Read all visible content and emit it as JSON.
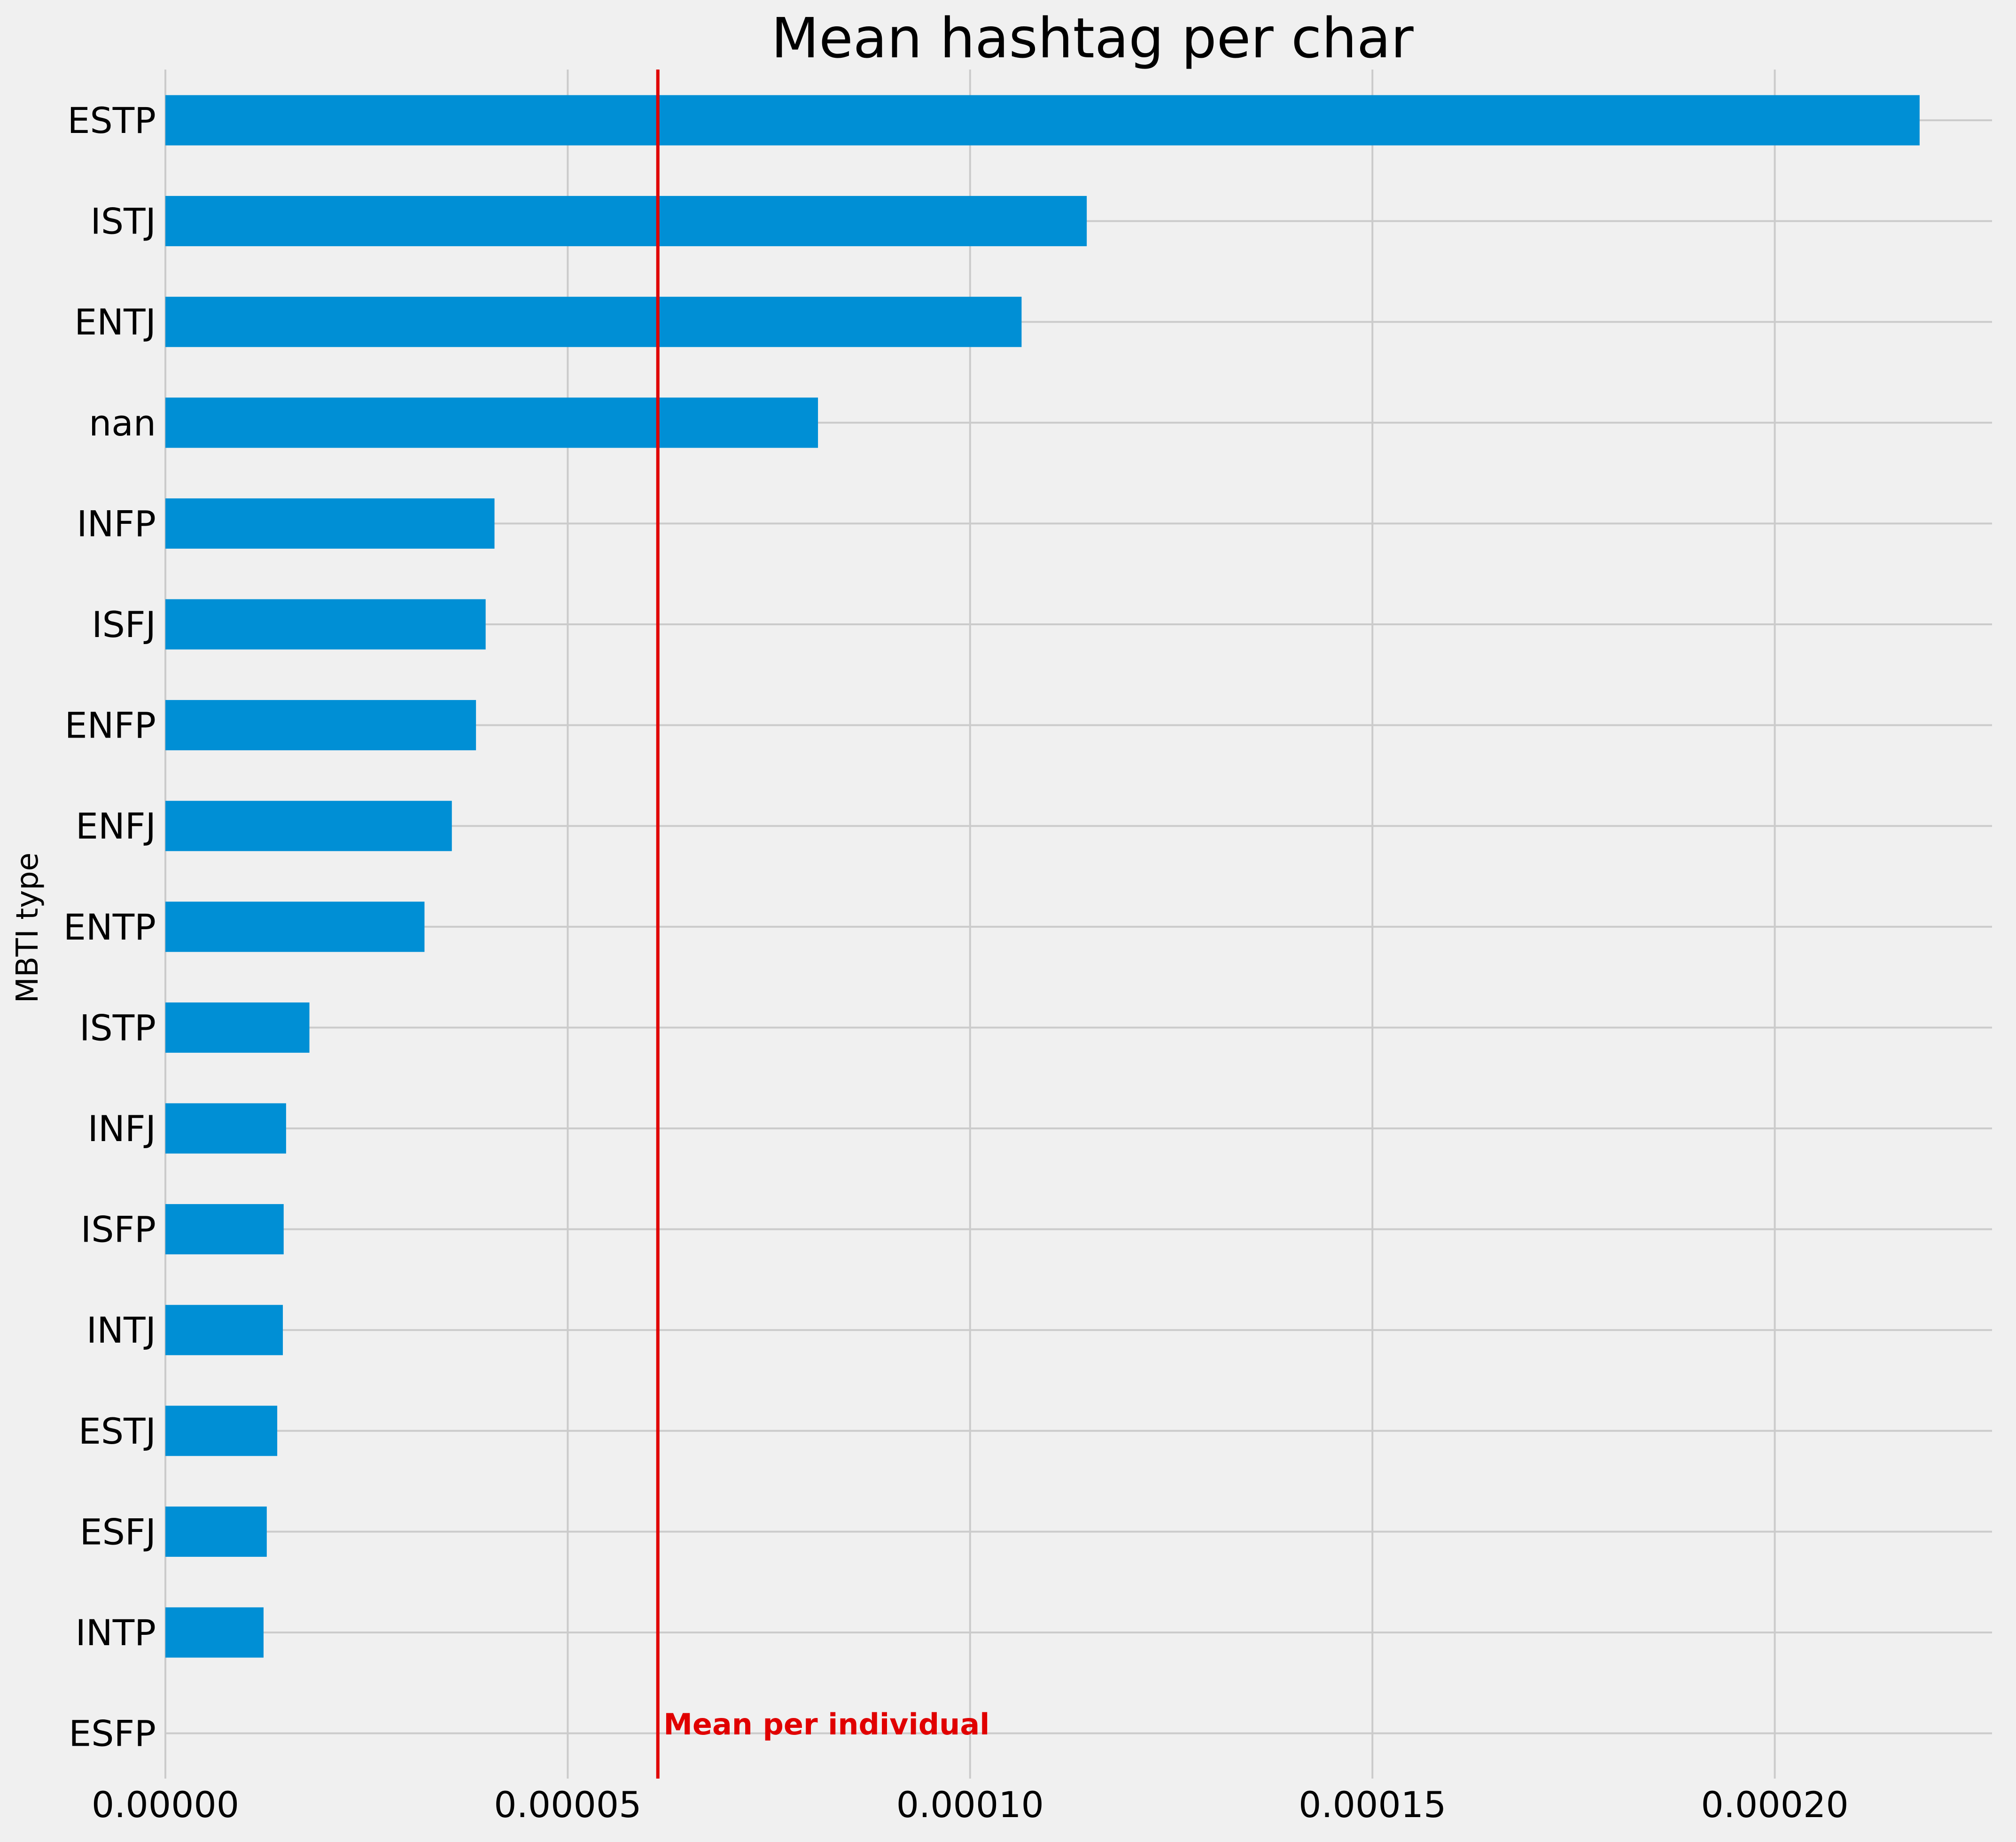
{
  "chart_data": {
    "type": "bar",
    "orientation": "horizontal",
    "title": "Mean hashtag per char",
    "ylabel": "MBTI type",
    "xlabel": "",
    "categories": [
      "ESTP",
      "ISTJ",
      "ENTJ",
      "nan",
      "INFP",
      "ISFJ",
      "ENFP",
      "ENFJ",
      "ENTP",
      "ISTP",
      "INFJ",
      "ISFP",
      "INTJ",
      "ESTJ",
      "ESFJ",
      "INTP",
      "ESFP"
    ],
    "values": [
      0.000218,
      0.0001145,
      0.0001064,
      8.11e-05,
      4.09e-05,
      3.98e-05,
      3.86e-05,
      3.56e-05,
      3.22e-05,
      1.79e-05,
      1.5e-05,
      1.47e-05,
      1.46e-05,
      1.39e-05,
      1.26e-05,
      1.22e-05,
      0.0
    ],
    "xlim": [
      0,
      0.000227
    ],
    "xticks": [
      0,
      5e-05,
      0.0001,
      0.00015,
      0.0002
    ],
    "xtick_labels": [
      "0.00000",
      "0.00005",
      "0.00010",
      "0.00015",
      "0.00020"
    ],
    "grid": true,
    "bar_color": "#008fd5",
    "reference_line": {
      "value": 6.12e-05,
      "label": "Mean per individual",
      "color": "#e00000"
    }
  }
}
